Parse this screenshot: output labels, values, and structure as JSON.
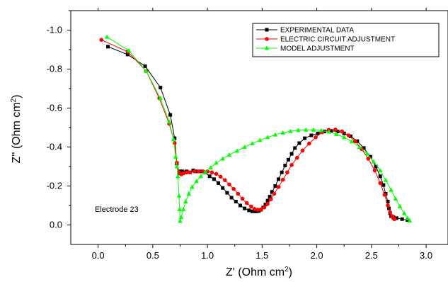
{
  "chart_data": {
    "type": "line",
    "xlabel": "Z' (Ohm cm",
    "xlabel_sup": "2",
    "xlabel_end": ")",
    "ylabel": "Z'' (Ohm cm",
    "ylabel_sup": "2",
    "ylabel_end": ")",
    "xlim": [
      -0.25,
      3.2
    ],
    "ylim": [
      0.1,
      -1.1
    ],
    "y_axis_reversed": true,
    "xticks": [
      0.0,
      0.5,
      1.0,
      1.5,
      2.0,
      2.5,
      3.0
    ],
    "xtick_labels": [
      "0.0",
      "0.5",
      "1.0",
      "1.5",
      "2.0",
      "2.5",
      "3.0"
    ],
    "yticks": [
      0.0,
      -0.2,
      -0.4,
      -0.6,
      -0.8,
      -1.0
    ],
    "ytick_labels": [
      "0.0",
      "-0.2",
      "-0.4",
      "-0.6",
      "-0.8",
      "-1.0"
    ],
    "grid": false,
    "legend_position": "top-right",
    "annotation": "Electrode 23",
    "series": [
      {
        "name": "EXPERIMENTAL DATA",
        "color": "#000000",
        "marker": "square",
        "x": [
          0.09,
          0.27,
          0.43,
          0.57,
          0.66,
          0.7,
          0.72,
          0.74,
          0.75,
          0.76,
          0.77,
          0.79,
          0.81,
          0.84,
          0.87,
          0.9,
          0.94,
          0.98,
          1.02,
          1.06,
          1.1,
          1.14,
          1.18,
          1.22,
          1.26,
          1.3,
          1.34,
          1.38,
          1.41,
          1.43,
          1.45,
          1.47,
          1.49,
          1.51,
          1.53,
          1.55,
          1.57,
          1.59,
          1.62,
          1.65,
          1.68,
          1.71,
          1.74,
          1.77,
          1.8,
          1.84,
          1.89,
          1.95,
          2.01,
          2.07,
          2.13,
          2.19,
          2.25,
          2.31,
          2.37,
          2.43,
          2.49,
          2.54,
          2.58,
          2.61,
          2.63,
          2.65,
          2.66,
          2.67,
          2.68,
          2.7,
          2.73,
          2.78,
          2.83
        ],
        "y": [
          -0.915,
          -0.875,
          -0.815,
          -0.705,
          -0.565,
          -0.445,
          -0.315,
          -0.265,
          -0.275,
          -0.275,
          -0.275,
          -0.27,
          -0.275,
          -0.27,
          -0.28,
          -0.275,
          -0.275,
          -0.27,
          -0.25,
          -0.235,
          -0.215,
          -0.19,
          -0.165,
          -0.14,
          -0.12,
          -0.1,
          -0.085,
          -0.075,
          -0.07,
          -0.07,
          -0.07,
          -0.072,
          -0.078,
          -0.09,
          -0.105,
          -0.125,
          -0.145,
          -0.17,
          -0.2,
          -0.235,
          -0.27,
          -0.305,
          -0.335,
          -0.365,
          -0.395,
          -0.42,
          -0.445,
          -0.46,
          -0.47,
          -0.48,
          -0.483,
          -0.48,
          -0.47,
          -0.455,
          -0.43,
          -0.395,
          -0.35,
          -0.3,
          -0.25,
          -0.205,
          -0.16,
          -0.12,
          -0.085,
          -0.06,
          -0.045,
          -0.04,
          -0.035,
          -0.03,
          -0.025
        ]
      },
      {
        "name": "ELECTRIC CIRCUIT ADJUSTMENT",
        "color": "#ff0000",
        "marker": "circle",
        "x": [
          0.03,
          0.27,
          0.44,
          0.56,
          0.65,
          0.7,
          0.72,
          0.74,
          0.76,
          0.78,
          0.81,
          0.84,
          0.88,
          0.92,
          0.96,
          1.0,
          1.04,
          1.08,
          1.12,
          1.16,
          1.2,
          1.24,
          1.28,
          1.32,
          1.36,
          1.4,
          1.43,
          1.46,
          1.49,
          1.52,
          1.55,
          1.58,
          1.61,
          1.65,
          1.69,
          1.73,
          1.77,
          1.82,
          1.87,
          1.93,
          1.99,
          2.05,
          2.11,
          2.17,
          2.23,
          2.29,
          2.35,
          2.41,
          2.47,
          2.53,
          2.58,
          2.62,
          2.65,
          2.67,
          2.69,
          2.7,
          2.71
        ],
        "y": [
          -0.95,
          -0.89,
          -0.79,
          -0.65,
          -0.52,
          -0.42,
          -0.32,
          -0.27,
          -0.26,
          -0.265,
          -0.27,
          -0.27,
          -0.275,
          -0.275,
          -0.275,
          -0.275,
          -0.27,
          -0.262,
          -0.248,
          -0.23,
          -0.208,
          -0.185,
          -0.16,
          -0.135,
          -0.112,
          -0.095,
          -0.082,
          -0.078,
          -0.08,
          -0.09,
          -0.108,
          -0.132,
          -0.16,
          -0.195,
          -0.232,
          -0.27,
          -0.308,
          -0.345,
          -0.382,
          -0.418,
          -0.45,
          -0.476,
          -0.488,
          -0.49,
          -0.48,
          -0.46,
          -0.43,
          -0.39,
          -0.34,
          -0.28,
          -0.215,
          -0.155,
          -0.1,
          -0.065,
          -0.045,
          -0.035,
          -0.03
        ]
      },
      {
        "name": "MODEL ADJUSTMENT",
        "color": "#00ff00",
        "marker": "triangle",
        "x": [
          0.08,
          0.28,
          0.44,
          0.57,
          0.65,
          0.69,
          0.71,
          0.72,
          0.73,
          0.74,
          0.745,
          0.75,
          0.76,
          0.78,
          0.8,
          0.83,
          0.86,
          0.9,
          0.94,
          0.98,
          1.03,
          1.08,
          1.14,
          1.2,
          1.27,
          1.34,
          1.41,
          1.48,
          1.55,
          1.62,
          1.69,
          1.76,
          1.83,
          1.9,
          1.97,
          2.04,
          2.11,
          2.18,
          2.25,
          2.32,
          2.39,
          2.46,
          2.52,
          2.58,
          2.63,
          2.68,
          2.72,
          2.76,
          2.8,
          2.83,
          2.85
        ],
        "y": [
          -0.965,
          -0.895,
          -0.79,
          -0.65,
          -0.53,
          -0.44,
          -0.35,
          -0.3,
          -0.25,
          -0.15,
          -0.08,
          -0.02,
          -0.04,
          -0.08,
          -0.12,
          -0.16,
          -0.195,
          -0.225,
          -0.25,
          -0.272,
          -0.295,
          -0.318,
          -0.34,
          -0.36,
          -0.38,
          -0.4,
          -0.418,
          -0.435,
          -0.45,
          -0.463,
          -0.473,
          -0.481,
          -0.486,
          -0.488,
          -0.488,
          -0.485,
          -0.478,
          -0.466,
          -0.45,
          -0.428,
          -0.4,
          -0.365,
          -0.325,
          -0.28,
          -0.23,
          -0.18,
          -0.135,
          -0.095,
          -0.06,
          -0.035,
          -0.022
        ]
      }
    ]
  }
}
